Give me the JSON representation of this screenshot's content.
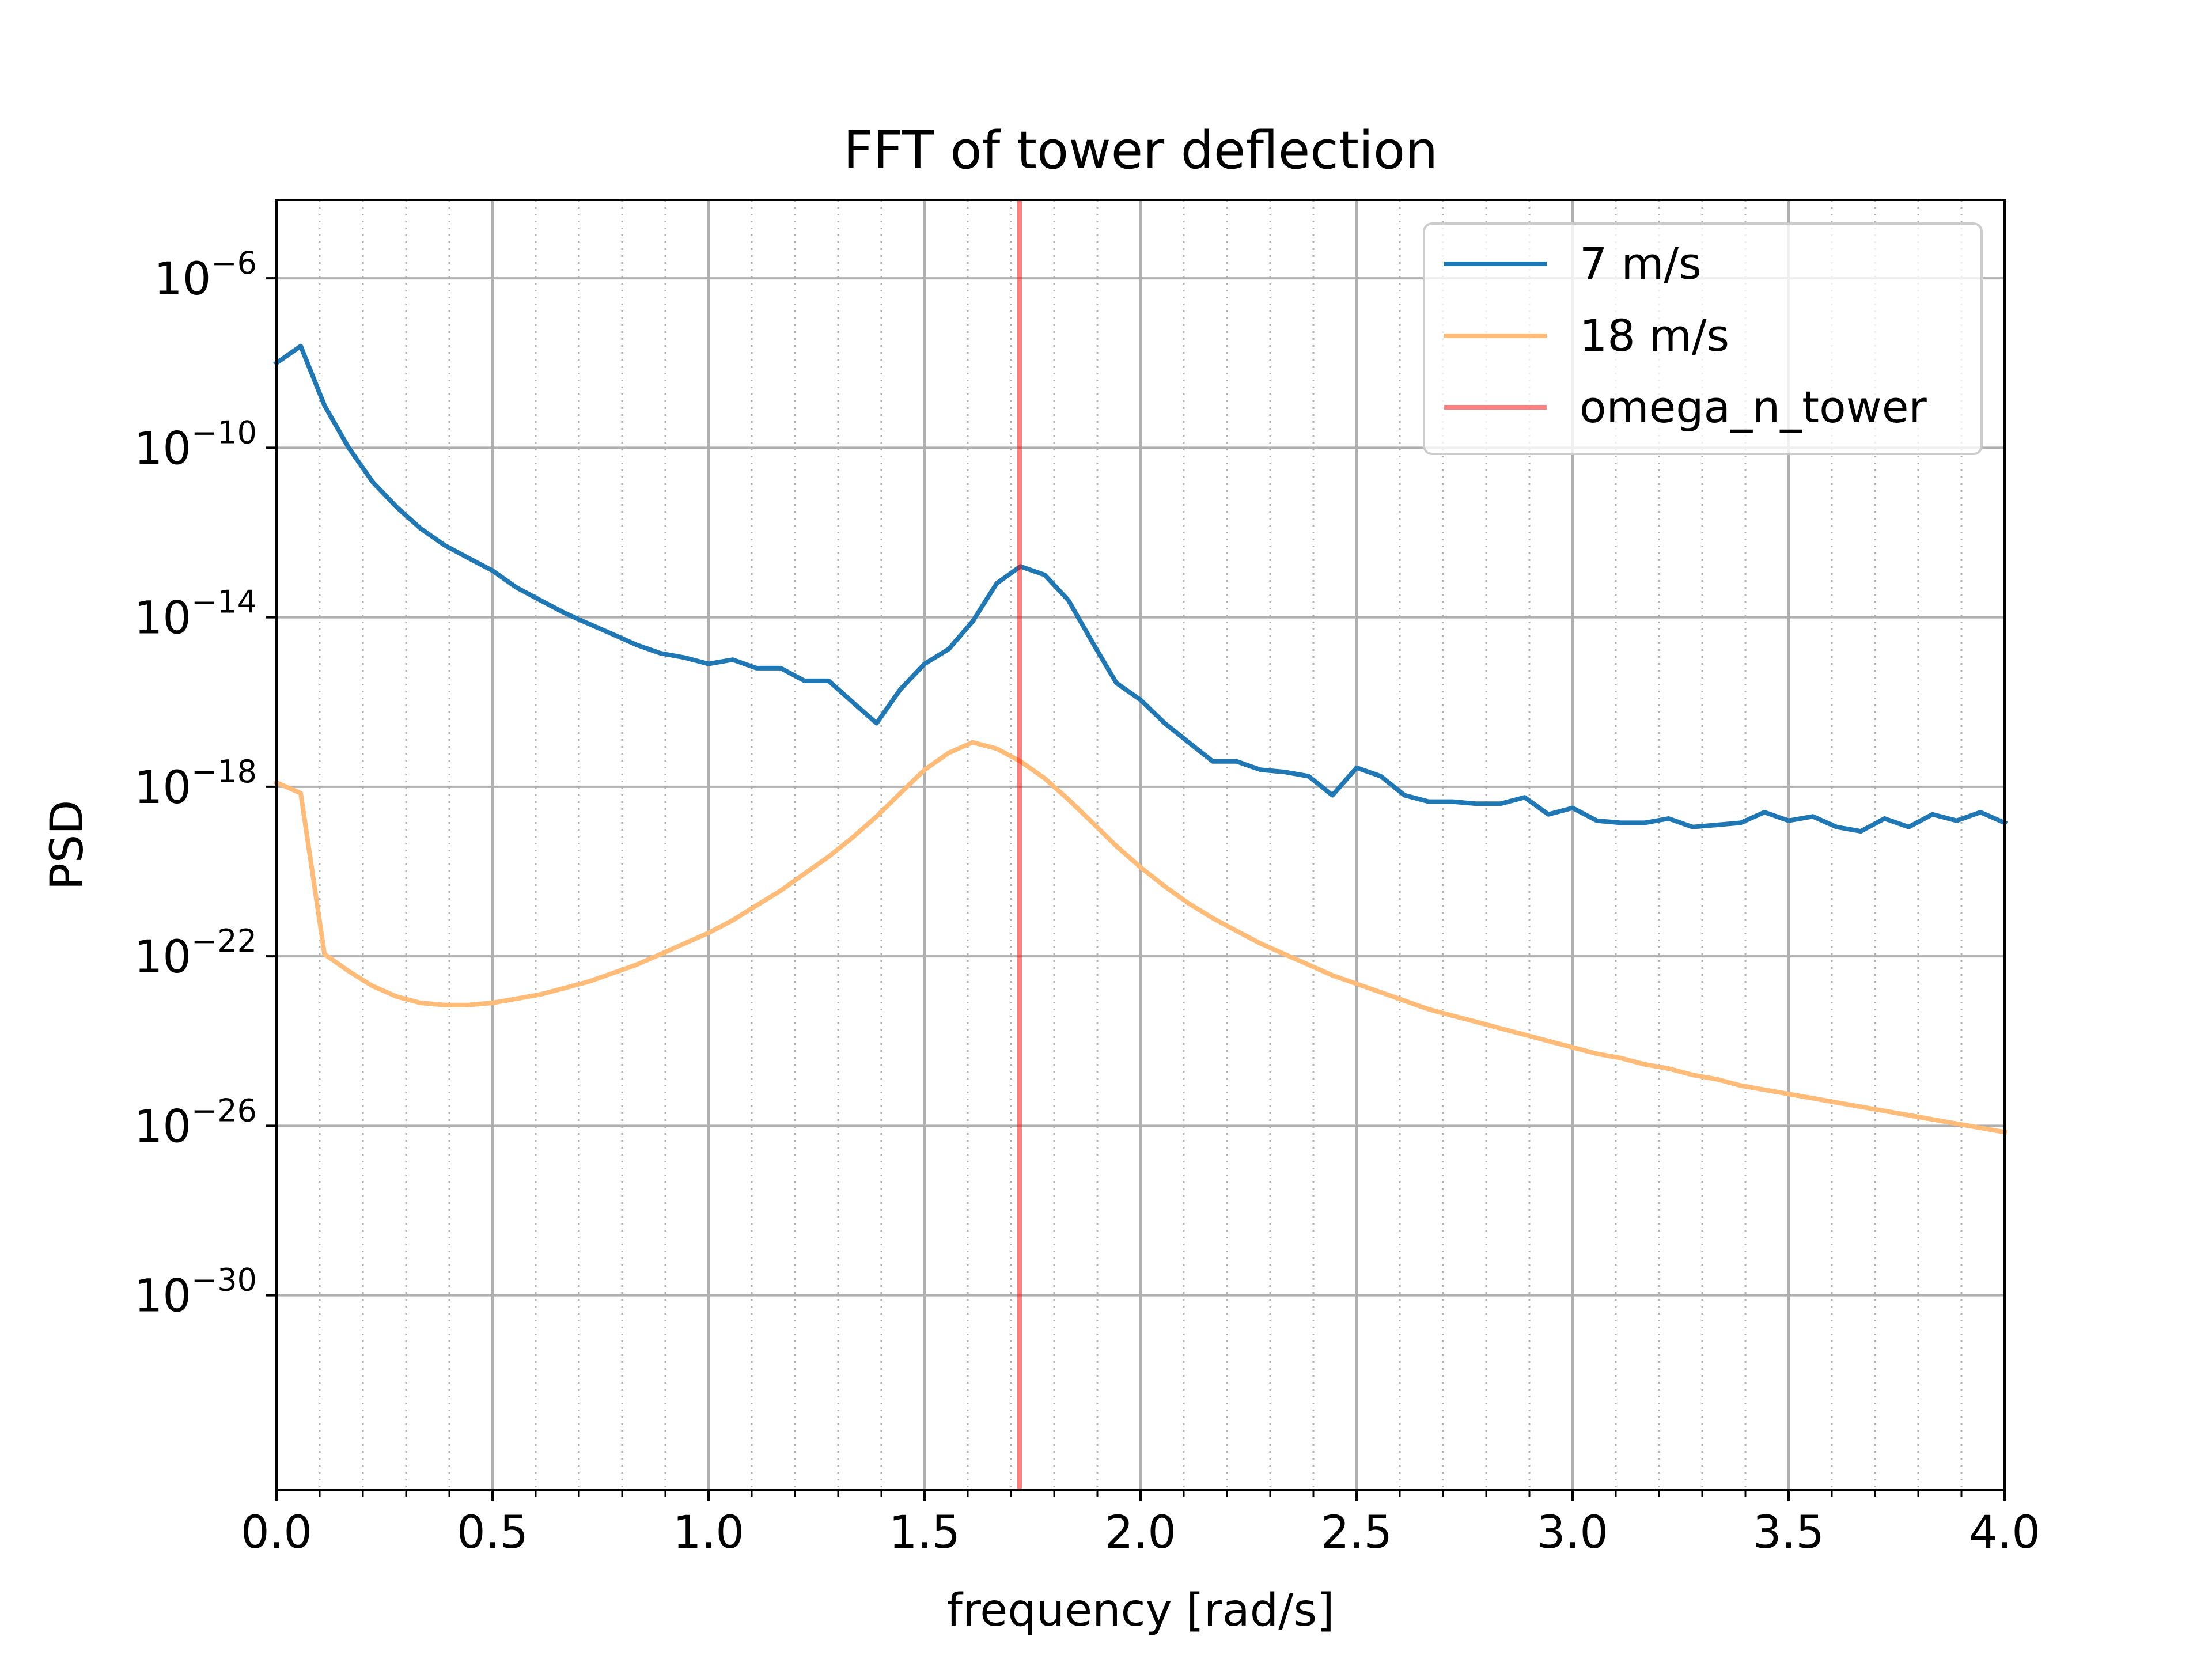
{
  "chart_data": {
    "type": "line",
    "title": "FFT of tower deflection",
    "xlabel": "frequency [rad/s]",
    "ylabel": "PSD",
    "xlim": [
      0.0,
      4.0
    ],
    "ylog_lim": [
      -34.6,
      -4.15
    ],
    "x_ticks": [
      {
        "value": 0.0,
        "label": "0.0"
      },
      {
        "value": 0.5,
        "label": "0.5"
      },
      {
        "value": 1.0,
        "label": "1.0"
      },
      {
        "value": 1.5,
        "label": "1.5"
      },
      {
        "value": 2.0,
        "label": "2.0"
      },
      {
        "value": 2.5,
        "label": "2.5"
      },
      {
        "value": 3.0,
        "label": "3.0"
      },
      {
        "value": 3.5,
        "label": "3.5"
      },
      {
        "value": 4.0,
        "label": "4.0"
      }
    ],
    "y_ticks": [
      {
        "exponent": -6,
        "base": "10",
        "sup": "−6"
      },
      {
        "exponent": -10,
        "base": "10",
        "sup": "−10"
      },
      {
        "exponent": -14,
        "base": "10",
        "sup": "−14"
      },
      {
        "exponent": -18,
        "base": "10",
        "sup": "−18"
      },
      {
        "exponent": -22,
        "base": "10",
        "sup": "−22"
      },
      {
        "exponent": -26,
        "base": "10",
        "sup": "−26"
      },
      {
        "exponent": -30,
        "base": "10",
        "sup": "−30"
      }
    ],
    "minor_x_step": 0.1,
    "grid": true,
    "legend_position": "top-right",
    "series": [
      {
        "name": "7 m/s",
        "color": "#1f77b4",
        "opacity": 1.0,
        "x": [
          0.0,
          0.056,
          0.111,
          0.167,
          0.222,
          0.278,
          0.333,
          0.389,
          0.444,
          0.5,
          0.556,
          0.611,
          0.667,
          0.722,
          0.778,
          0.833,
          0.889,
          0.944,
          1.0,
          1.056,
          1.111,
          1.167,
          1.222,
          1.278,
          1.333,
          1.389,
          1.444,
          1.5,
          1.556,
          1.611,
          1.667,
          1.722,
          1.778,
          1.833,
          1.889,
          1.944,
          2.0,
          2.056,
          2.111,
          2.167,
          2.222,
          2.278,
          2.333,
          2.389,
          2.444,
          2.5,
          2.556,
          2.611,
          2.667,
          2.722,
          2.778,
          2.833,
          2.889,
          2.944,
          3.0,
          3.056,
          3.111,
          3.167,
          3.222,
          3.278,
          3.333,
          3.389,
          3.444,
          3.5,
          3.556,
          3.611,
          3.667,
          3.722,
          3.778,
          3.833,
          3.889,
          3.944,
          4.0
        ],
        "log10_values": [
          -8.0,
          -7.6,
          -9.0,
          -10.0,
          -10.8,
          -11.4,
          -11.9,
          -12.3,
          -12.6,
          -12.9,
          -13.3,
          -13.6,
          -13.9,
          -14.15,
          -14.4,
          -14.65,
          -14.85,
          -14.95,
          -15.1,
          -15.0,
          -15.2,
          -15.2,
          -15.5,
          -15.5,
          -16.0,
          -16.5,
          -15.7,
          -15.1,
          -14.75,
          -14.1,
          -13.2,
          -12.8,
          -13.0,
          -13.6,
          -14.6,
          -15.55,
          -15.95,
          -16.5,
          -16.95,
          -17.4,
          -17.4,
          -17.6,
          -17.65,
          -17.75,
          -18.2,
          -17.55,
          -17.75,
          -18.2,
          -18.35,
          -18.35,
          -18.4,
          -18.4,
          -18.25,
          -18.65,
          -18.5,
          -18.8,
          -18.85,
          -18.85,
          -18.75,
          -18.95,
          -18.9,
          -18.85,
          -18.6,
          -18.8,
          -18.7,
          -18.95,
          -19.05,
          -18.75,
          -18.95,
          -18.65,
          -18.8,
          -18.6,
          -18.85
        ]
      },
      {
        "name": "18 m/s",
        "color": "#ffbb78",
        "opacity": 1.0,
        "x": [
          0.0,
          0.056,
          0.111,
          0.167,
          0.222,
          0.278,
          0.333,
          0.389,
          0.444,
          0.5,
          0.556,
          0.611,
          0.667,
          0.722,
          0.778,
          0.833,
          0.889,
          0.944,
          1.0,
          1.056,
          1.111,
          1.167,
          1.222,
          1.278,
          1.333,
          1.389,
          1.444,
          1.5,
          1.556,
          1.611,
          1.667,
          1.722,
          1.778,
          1.833,
          1.889,
          1.944,
          2.0,
          2.056,
          2.111,
          2.167,
          2.222,
          2.278,
          2.333,
          2.389,
          2.444,
          2.5,
          2.556,
          2.611,
          2.667,
          2.722,
          2.778,
          2.833,
          2.889,
          2.944,
          3.0,
          3.056,
          3.111,
          3.167,
          3.222,
          3.278,
          3.333,
          3.389,
          3.444,
          3.5,
          3.556,
          3.611,
          3.667,
          3.722,
          3.778,
          3.833,
          3.889,
          3.944,
          4.0
        ],
        "log10_values": [
          -17.9,
          -18.15,
          -21.95,
          -22.35,
          -22.7,
          -22.95,
          -23.1,
          -23.15,
          -23.15,
          -23.1,
          -23.0,
          -22.9,
          -22.75,
          -22.6,
          -22.4,
          -22.2,
          -21.95,
          -21.7,
          -21.45,
          -21.15,
          -20.8,
          -20.45,
          -20.05,
          -19.65,
          -19.2,
          -18.7,
          -18.15,
          -17.6,
          -17.2,
          -16.95,
          -17.1,
          -17.4,
          -17.8,
          -18.3,
          -18.85,
          -19.4,
          -19.9,
          -20.35,
          -20.75,
          -21.1,
          -21.4,
          -21.7,
          -21.95,
          -22.2,
          -22.45,
          -22.65,
          -22.85,
          -23.05,
          -23.25,
          -23.4,
          -23.55,
          -23.7,
          -23.85,
          -24.0,
          -24.15,
          -24.3,
          -24.4,
          -24.55,
          -24.65,
          -24.8,
          -24.9,
          -25.05,
          -25.15,
          -25.25,
          -25.35,
          -25.45,
          -25.55,
          -25.65,
          -25.75,
          -25.85,
          -25.95,
          -26.05,
          -26.15
        ]
      }
    ],
    "vline": {
      "name": "omega_n_tower",
      "x": 1.72,
      "color": "#ff0000",
      "opacity": 0.5
    }
  }
}
